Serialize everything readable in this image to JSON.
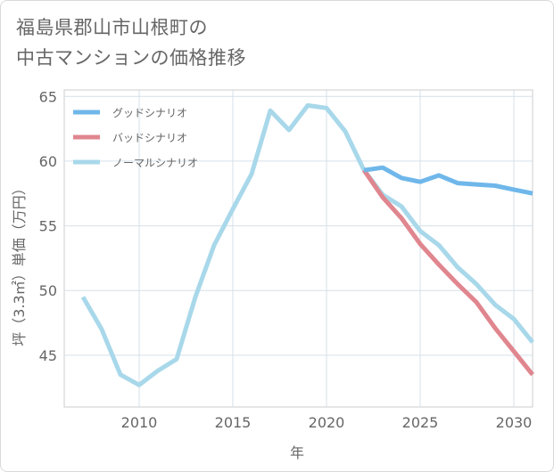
{
  "title": "福島県郡山市山根町の\n中古マンションの価格推移",
  "chart_data": {
    "type": "line",
    "title": "福島県郡山市山根町の中古マンションの価格推移",
    "xlabel": "年",
    "ylabel": "坪（3.3㎡）単価（万円）",
    "xlim": [
      2006,
      2031
    ],
    "ylim": [
      41,
      65.5
    ],
    "xticks": [
      2010,
      2015,
      2020,
      2025,
      2030
    ],
    "yticks": [
      45,
      50,
      55,
      60,
      65
    ],
    "grid": true,
    "legend_position": "top-left",
    "series": [
      {
        "name": "グッドシナリオ",
        "color": "#6fb7ea",
        "x": [
          2022,
          2023,
          2024,
          2025,
          2026,
          2027,
          2028,
          2029,
          2030,
          2031
        ],
        "values": [
          59.3,
          59.5,
          58.7,
          58.4,
          58.9,
          58.3,
          58.2,
          58.1,
          57.8,
          57.5
        ]
      },
      {
        "name": "バッドシナリオ",
        "color": "#e0868f",
        "x": [
          2022,
          2023,
          2024,
          2025,
          2026,
          2027,
          2028,
          2029,
          2030,
          2031
        ],
        "values": [
          59.3,
          57.2,
          55.6,
          53.6,
          52.0,
          50.5,
          49.1,
          47.1,
          45.3,
          43.5
        ]
      },
      {
        "name": "ノーマルシナリオ",
        "color": "#a8d8ea",
        "x": [
          2007,
          2008,
          2009,
          2010,
          2011,
          2012,
          2013,
          2014,
          2015,
          2016,
          2017,
          2018,
          2019,
          2020,
          2021,
          2022,
          2023,
          2024,
          2025,
          2026,
          2027,
          2028,
          2029,
          2030,
          2031
        ],
        "values": [
          49.5,
          47.0,
          43.5,
          42.7,
          43.8,
          44.7,
          49.5,
          53.5,
          56.3,
          59.0,
          63.9,
          62.4,
          64.3,
          64.1,
          62.3,
          59.3,
          57.4,
          56.5,
          54.6,
          53.5,
          51.8,
          50.5,
          48.9,
          47.8,
          46.0
        ]
      }
    ]
  }
}
